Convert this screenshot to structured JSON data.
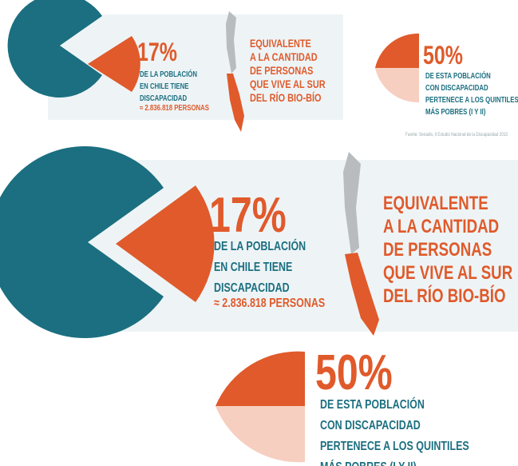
{
  "top": {
    "pct1": "17%",
    "desc1": [
      "DE LA POBLACIÓN",
      "EN CHILE TIENE",
      "DISCAPACIDAD"
    ],
    "persons": "≈ 2.836.818 PERSONAS",
    "equiv": [
      "EQUIVALENTE",
      "A LA CANTIDAD",
      "DE PERSONAS",
      "QUE VIVE AL SUR",
      "DEL RÍO BIO-BÍO"
    ],
    "pct2": "50%",
    "desc2": [
      "DE ESTA POBLACIÓN",
      "CON DISCAPACIDAD",
      "PERTENECE A LOS QUINTILES",
      "MÁS POBRES (I Y II)"
    ],
    "source": "Fuente: Senadis, II Estudio Nacional de la Discapacidad 2015"
  },
  "bottom": {
    "pct1": "17%",
    "desc1": [
      "DE LA POBLACIÓN",
      "EN CHILE TIENE",
      "DISCAPACIDAD"
    ],
    "persons": "≈ 2.836.818 PERSONAS",
    "equiv": [
      "EQUIVALENTE",
      "A LA CANTIDAD",
      "DE PERSONAS",
      "QUE VIVE AL SUR",
      "DEL RÍO BIO-BÍO"
    ],
    "pct2": "50%",
    "desc2": [
      "DE ESTA POBLACIÓN",
      "CON DISCAPACIDAD",
      "PERTENECE A LOS QUINTILES",
      "MÁS POBRES (I Y II)"
    ]
  }
}
